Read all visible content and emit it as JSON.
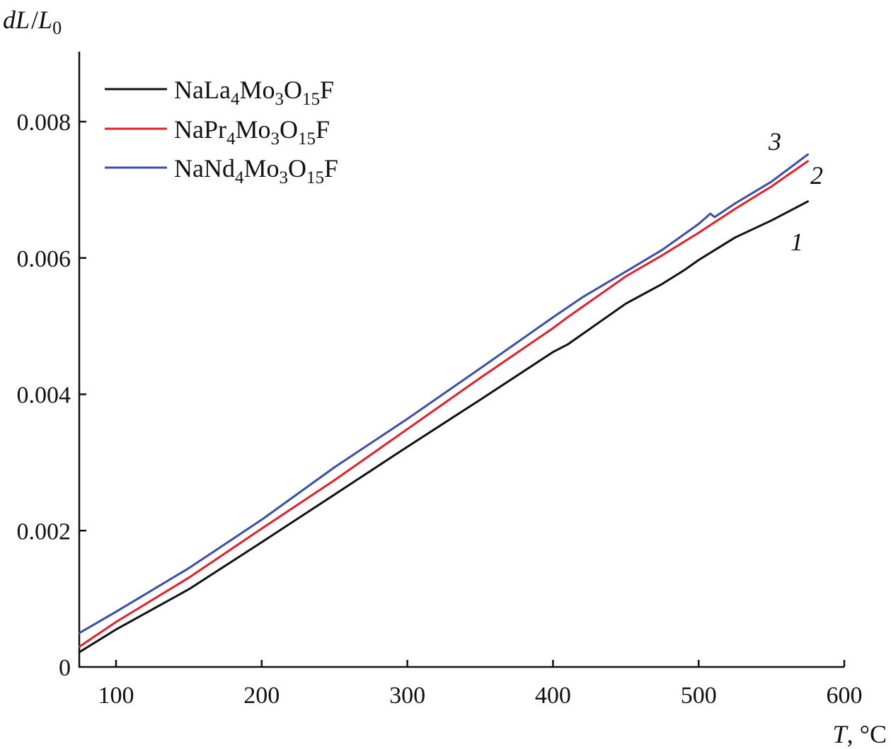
{
  "chart_data": {
    "type": "line",
    "ylabel_parts": {
      "d": "d",
      "L": "L",
      "slash": "/",
      "L0": "L",
      "sub": "0"
    },
    "xlabel_parts": {
      "T": "T",
      "unit": ", °C"
    },
    "xlim": [
      75,
      600
    ],
    "ylim": [
      0,
      0.009
    ],
    "x_ticks": [
      {
        "value": 100,
        "label": "100"
      },
      {
        "value": 200,
        "label": "200"
      },
      {
        "value": 300,
        "label": "300"
      },
      {
        "value": 400,
        "label": "400"
      },
      {
        "value": 500,
        "label": "500"
      },
      {
        "value": 600,
        "label": "600"
      }
    ],
    "y_ticks": [
      {
        "value": 0,
        "label": "0"
      },
      {
        "value": 0.002,
        "label": "0.002"
      },
      {
        "value": 0.004,
        "label": "0.004"
      },
      {
        "value": 0.006,
        "label": "0.006"
      },
      {
        "value": 0.008,
        "label": "0.008"
      }
    ],
    "grid": false,
    "legend_position": "top-left",
    "series": [
      {
        "name": "NaLa4Mo3O15F",
        "name_parts": {
          "p1": "NaLa",
          "s1": "4",
          "p2": "Mo",
          "s2": "3",
          "p3": "O",
          "s3": "15",
          "p4": "F"
        },
        "curve_label": "1",
        "color": "#111111",
        "x": [
          75,
          100,
          150,
          200,
          250,
          300,
          350,
          400,
          410,
          450,
          475,
          490,
          500,
          525,
          550,
          575
        ],
        "y": [
          0.00022,
          0.00055,
          0.00114,
          0.00183,
          0.00253,
          0.00323,
          0.00392,
          0.00462,
          0.00473,
          0.00533,
          0.00562,
          0.00582,
          0.00597,
          0.0063,
          0.00655,
          0.00683
        ]
      },
      {
        "name": "NaPr4Mo3O15F",
        "name_parts": {
          "p1": "NaPr",
          "s1": "4",
          "p2": "Mo",
          "s2": "3",
          "p3": "O",
          "s3": "15",
          "p4": "F"
        },
        "curve_label": "2",
        "color": "#e0202a",
        "x": [
          75,
          100,
          150,
          200,
          250,
          300,
          350,
          400,
          410,
          450,
          475,
          500,
          525,
          550,
          575
        ],
        "y": [
          0.0003,
          0.00066,
          0.00131,
          0.00203,
          0.00274,
          0.00349,
          0.00424,
          0.00497,
          0.00513,
          0.00573,
          0.00604,
          0.00637,
          0.00672,
          0.00705,
          0.00742
        ]
      },
      {
        "name": "NaNd4Mo3O15F",
        "name_parts": {
          "p1": "NaNd",
          "s1": "4",
          "p2": "Mo",
          "s2": "3",
          "p3": "O",
          "s3": "15",
          "p4": "F"
        },
        "curve_label": "3",
        "color": "#3a4fa8",
        "x": [
          75,
          100,
          150,
          200,
          250,
          300,
          350,
          400,
          420,
          450,
          475,
          500,
          508,
          511,
          525,
          550,
          575
        ],
        "y": [
          0.0005,
          0.00081,
          0.00145,
          0.00216,
          0.00293,
          0.00364,
          0.00438,
          0.00513,
          0.00542,
          0.0058,
          0.00612,
          0.0065,
          0.00665,
          0.0066,
          0.0068,
          0.00712,
          0.00752
        ]
      }
    ]
  }
}
